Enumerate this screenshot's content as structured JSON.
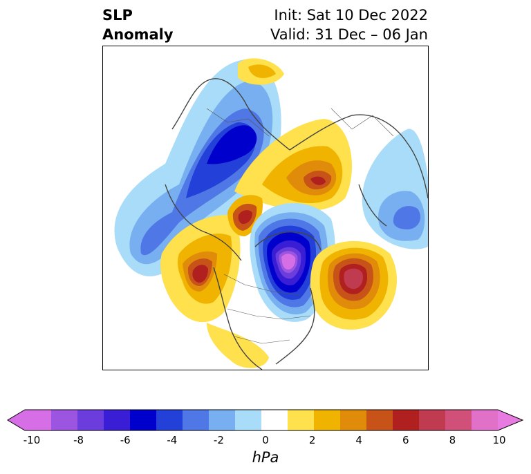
{
  "title": {
    "left_line1": "SLP",
    "left_line2": "Anomaly",
    "right_line1": "Init: Sat 10 Dec 2022",
    "right_line2": "Valid: 31 Dec – 06 Jan"
  },
  "colorbar": {
    "units": "hPa",
    "range": [
      -10,
      10
    ],
    "tick_labels": [
      "-10",
      "-8",
      "-6",
      "-4",
      "-2",
      "0",
      "2",
      "4",
      "6",
      "8",
      "10"
    ],
    "extend": "both",
    "colors": [
      "#d66ee6",
      "#9b55e0",
      "#6a3ddc",
      "#3a1ed6",
      "#0000cd",
      "#2340d8",
      "#4f78e6",
      "#78aff0",
      "#a9dcf8",
      "#ffffff",
      "#ffe04d",
      "#f0b400",
      "#e08c0a",
      "#c85318",
      "#b0201e",
      "#c03a50",
      "#d0507a",
      "#e070c8"
    ],
    "under_color": "#d66ee6",
    "over_color": "#e87be0"
  },
  "map": {
    "projection": "polar stereographic, North Hemisphere",
    "background": "#ffffff",
    "coastline_color": "#444444"
  }
}
